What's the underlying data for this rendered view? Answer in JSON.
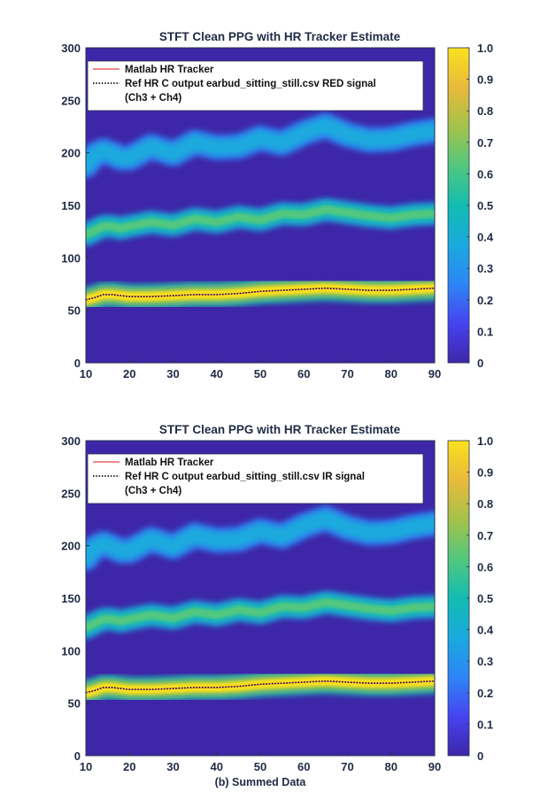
{
  "figure_caption": "(b) Summed Data",
  "colors": {
    "background_low": "#3b2f8f",
    "cmap": [
      "#3e26a8",
      "#4743f0",
      "#2d86f5",
      "#1aa9de",
      "#13bcb0",
      "#52c77e",
      "#a5c24a",
      "#e9b93a",
      "#f9e11e"
    ],
    "legend_matlab": "#f08a8a",
    "legend_ref": "#111111"
  },
  "chart_data": [
    {
      "type": "heatmap",
      "title": "STFT Clean PPG with HR Tracker Estimate",
      "xlim": [
        10,
        90
      ],
      "ylim": [
        0,
        300
      ],
      "xticks": [
        "10",
        "20",
        "30",
        "40",
        "50",
        "60",
        "70",
        "80",
        "90"
      ],
      "yticks": [
        "0",
        "50",
        "100",
        "150",
        "200",
        "250",
        "300"
      ],
      "colorbar": {
        "min": 0,
        "max": 1,
        "ticks": [
          "0",
          "0.1",
          "0.2",
          "0.3",
          "0.4",
          "0.5",
          "0.6",
          "0.7",
          "0.8",
          "0.9",
          "1.0"
        ]
      },
      "legend": {
        "placement": "top",
        "entries": [
          {
            "label": "Matlab HR Tracker",
            "style": "solid"
          },
          {
            "label": "Ref HR C output earbud_sitting_still.csv RED signal",
            "style": "dotted"
          },
          {
            "label": "(Ch3 + Ch4)",
            "style": "none"
          }
        ]
      },
      "series": [
        {
          "x": [
            10,
            12,
            14,
            16,
            18,
            20,
            25,
            30,
            35,
            40,
            45,
            50,
            55,
            60,
            65,
            70,
            75,
            80,
            85,
            90
          ],
          "y": [
            60,
            62,
            65,
            65,
            64,
            63,
            63,
            64,
            65,
            65,
            66,
            68,
            69,
            70,
            71,
            70,
            69,
            69,
            70,
            71
          ]
        }
      ],
      "bands": [
        {
          "intensity": 0.95,
          "width": 10,
          "y": [
            60,
            62,
            65,
            65,
            64,
            63,
            63,
            64,
            65,
            65,
            66,
            68,
            69,
            70,
            71,
            70,
            69,
            69,
            70,
            71
          ]
        },
        {
          "intensity": 0.65,
          "width": 9,
          "y": [
            122,
            126,
            130,
            130,
            128,
            130,
            134,
            131,
            137,
            134,
            139,
            136,
            142,
            141,
            146,
            143,
            140,
            138,
            141,
            142
          ]
        },
        {
          "intensity": 0.4,
          "width": 10,
          "y": [
            188,
            198,
            202,
            199,
            195,
            195,
            206,
            199,
            210,
            205,
            206,
            214,
            209,
            219,
            226,
            217,
            212,
            213,
            218,
            221
          ]
        }
      ]
    },
    {
      "type": "heatmap",
      "title": "STFT Clean PPG with HR Tracker Estimate",
      "xlim": [
        10,
        90
      ],
      "ylim": [
        0,
        300
      ],
      "xticks": [
        "10",
        "20",
        "30",
        "40",
        "50",
        "60",
        "70",
        "80",
        "90"
      ],
      "yticks": [
        "0",
        "50",
        "100",
        "150",
        "200",
        "250",
        "300"
      ],
      "colorbar": {
        "min": 0,
        "max": 1,
        "ticks": [
          "0",
          "0.1",
          "0.2",
          "0.3",
          "0.4",
          "0.5",
          "0.6",
          "0.7",
          "0.8",
          "0.9",
          "1.0"
        ]
      },
      "legend": {
        "placement": "top",
        "entries": [
          {
            "label": "Matlab HR Tracker",
            "style": "solid"
          },
          {
            "label": "Ref HR C output earbud_sitting_still.csv IR signal",
            "style": "dotted"
          },
          {
            "label": "(Ch3 + Ch4)",
            "style": "none"
          }
        ]
      },
      "series": [
        {
          "x": [
            10,
            12,
            14,
            16,
            18,
            20,
            25,
            30,
            35,
            40,
            45,
            50,
            55,
            60,
            65,
            70,
            75,
            80,
            85,
            90
          ],
          "y": [
            60,
            62,
            65,
            65,
            64,
            63,
            63,
            64,
            65,
            65,
            66,
            68,
            69,
            70,
            71,
            70,
            69,
            69,
            70,
            71
          ]
        }
      ],
      "bands": [
        {
          "intensity": 0.95,
          "width": 10,
          "y": [
            60,
            62,
            65,
            65,
            64,
            63,
            63,
            64,
            65,
            65,
            66,
            68,
            69,
            70,
            71,
            70,
            69,
            69,
            70,
            71
          ]
        },
        {
          "intensity": 0.65,
          "width": 9,
          "y": [
            122,
            126,
            130,
            130,
            128,
            130,
            134,
            131,
            137,
            134,
            139,
            136,
            142,
            141,
            146,
            143,
            140,
            138,
            141,
            142
          ]
        },
        {
          "intensity": 0.4,
          "width": 10,
          "y": [
            188,
            198,
            202,
            199,
            195,
            195,
            206,
            199,
            210,
            205,
            206,
            214,
            209,
            219,
            226,
            217,
            212,
            213,
            218,
            221
          ]
        }
      ]
    }
  ]
}
